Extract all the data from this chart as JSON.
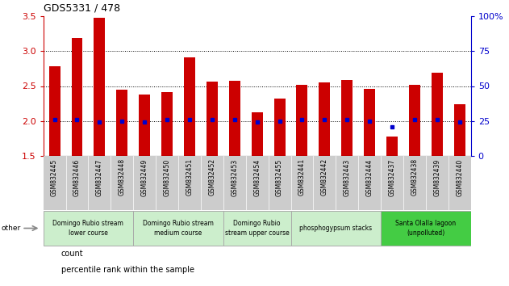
{
  "title": "GDS5331 / 478",
  "samples": [
    "GSM832445",
    "GSM832446",
    "GSM832447",
    "GSM832448",
    "GSM832449",
    "GSM832450",
    "GSM832451",
    "GSM832452",
    "GSM832453",
    "GSM832454",
    "GSM832455",
    "GSM832441",
    "GSM832442",
    "GSM832443",
    "GSM832444",
    "GSM832437",
    "GSM832438",
    "GSM832439",
    "GSM832440"
  ],
  "count_values": [
    2.78,
    3.19,
    3.48,
    2.45,
    2.38,
    2.41,
    2.91,
    2.56,
    2.57,
    2.12,
    2.32,
    2.52,
    2.55,
    2.59,
    2.46,
    1.78,
    2.52,
    2.69,
    2.24
  ],
  "percentile_values": [
    26,
    26,
    24,
    25,
    24,
    26,
    26,
    26,
    26,
    24,
    25,
    26,
    26,
    26,
    25,
    21,
    26,
    26,
    24
  ],
  "ylim_left": [
    1.5,
    3.5
  ],
  "ylim_right": [
    0,
    100
  ],
  "bar_color": "#cc0000",
  "dot_color": "#0000cc",
  "groups": [
    {
      "label": "Domingo Rubio stream\nlower course",
      "start": 0,
      "end": 3
    },
    {
      "label": "Domingo Rubio stream\nmedium course",
      "start": 4,
      "end": 7
    },
    {
      "label": "Domingo Rubio\nstream upper course",
      "start": 8,
      "end": 10
    },
    {
      "label": "phosphogypsum stacks",
      "start": 11,
      "end": 14
    },
    {
      "label": "Santa Olalla lagoon\n(unpolluted)",
      "start": 15,
      "end": 18
    }
  ],
  "group_colors": [
    "#cceecc",
    "#cceecc",
    "#cceecc",
    "#cceecc",
    "#44cc44"
  ],
  "grid_yticks_left": [
    1.5,
    2.0,
    2.5,
    3.0,
    3.5
  ],
  "grid_yticks_right": [
    0,
    25,
    50,
    75,
    100
  ],
  "bar_width": 0.5,
  "xlabel_bg": "#cccccc",
  "fig_bg": "#ffffff"
}
